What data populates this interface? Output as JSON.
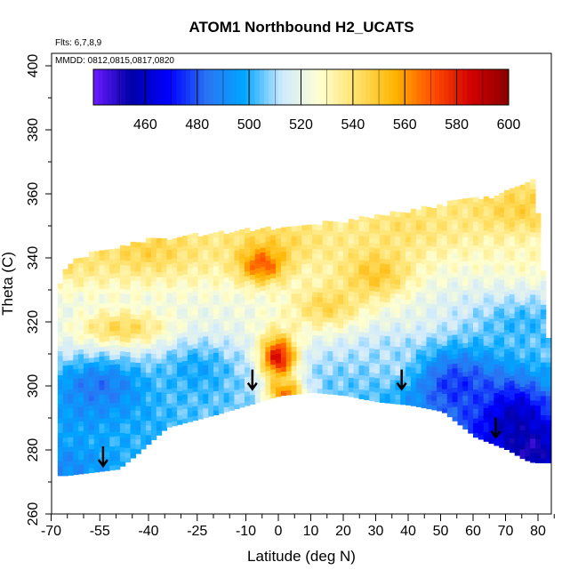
{
  "chart_data": {
    "type": "heatmap",
    "title": "ATOM1 Northbound H2_UCATS",
    "xlabel": "Latitude (deg N)",
    "ylabel": "Theta (C)",
    "notes": [
      "Flts: 6,7,8,9",
      "MMDD: 0812,0815,0817,0820"
    ],
    "xlim": [
      -70,
      85
    ],
    "ylim": [
      260,
      405
    ],
    "x_ticks": [
      -70,
      -55,
      -40,
      -25,
      -10,
      0,
      10,
      20,
      30,
      40,
      50,
      60,
      70,
      80
    ],
    "x_minor_ticks": [
      -65,
      -60,
      -50,
      -45,
      -35,
      -30,
      -20,
      -15,
      -5,
      5,
      15,
      25,
      35,
      45,
      55,
      65,
      75,
      85
    ],
    "y_ticks": [
      260,
      280,
      300,
      320,
      340,
      360,
      380,
      400
    ],
    "colorbar": {
      "range": [
        440,
        600
      ],
      "ticks": [
        460,
        480,
        500,
        520,
        540,
        560,
        580,
        600
      ],
      "colors": [
        "#6a1cff",
        "#0000a8",
        "#0000ff",
        "#2a74f2",
        "#00a6ff",
        "#cfeaff",
        "#ffffd0",
        "#ffe066",
        "#ffb400",
        "#ff4d00",
        "#d20000",
        "#8a0000"
      ]
    },
    "arrows": [
      {
        "lat": -54,
        "theta": 275
      },
      {
        "lat": -8,
        "theta": 299
      },
      {
        "lat": 38,
        "theta": 299
      },
      {
        "lat": 67,
        "theta": 284
      }
    ],
    "outline": {
      "upper": [
        [
          -68,
          332
        ],
        [
          -65,
          338
        ],
        [
          -55,
          342
        ],
        [
          -40,
          345
        ],
        [
          -20,
          347
        ],
        [
          0,
          349
        ],
        [
          20,
          351
        ],
        [
          40,
          354
        ],
        [
          55,
          357
        ],
        [
          68,
          359
        ],
        [
          78,
          364
        ],
        [
          80,
          345
        ],
        [
          82,
          320
        ],
        [
          83,
          305
        ],
        [
          84,
          296
        ],
        [
          84,
          277
        ]
      ],
      "lower": [
        [
          -66,
          272
        ],
        [
          -50,
          274
        ],
        [
          -45,
          278
        ],
        [
          -35,
          287
        ],
        [
          -20,
          291
        ],
        [
          -10,
          294
        ],
        [
          0,
          297
        ],
        [
          10,
          298
        ],
        [
          20,
          297
        ],
        [
          30,
          295
        ],
        [
          40,
          294
        ],
        [
          50,
          292
        ],
        [
          60,
          284
        ],
        [
          70,
          280
        ],
        [
          75,
          277
        ],
        [
          78,
          276
        ],
        [
          84,
          276
        ]
      ]
    },
    "field": {
      "base": [
        {
          "lat": -70,
          "theta": 275,
          "value": 488
        },
        {
          "lat": -60,
          "theta": 290,
          "value": 495
        },
        {
          "lat": -40,
          "theta": 288,
          "value": 500
        },
        {
          "lat": -20,
          "theta": 295,
          "value": 505
        },
        {
          "lat": 0,
          "theta": 300,
          "value": 512
        },
        {
          "lat": 20,
          "theta": 300,
          "value": 505
        },
        {
          "lat": 40,
          "theta": 298,
          "value": 500
        },
        {
          "lat": 60,
          "theta": 285,
          "value": 480
        },
        {
          "lat": 75,
          "theta": 282,
          "value": 460
        },
        {
          "lat": -70,
          "theta": 320,
          "value": 518
        },
        {
          "lat": -40,
          "theta": 320,
          "value": 520
        },
        {
          "lat": 0,
          "theta": 320,
          "value": 525
        },
        {
          "lat": 40,
          "theta": 320,
          "value": 520
        },
        {
          "lat": 75,
          "theta": 320,
          "value": 500
        },
        {
          "lat": -70,
          "theta": 340,
          "value": 545
        },
        {
          "lat": -40,
          "theta": 342,
          "value": 548
        },
        {
          "lat": 0,
          "theta": 345,
          "value": 545
        },
        {
          "lat": 40,
          "theta": 350,
          "value": 542
        },
        {
          "lat": 75,
          "theta": 355,
          "value": 548
        },
        {
          "lat": 80,
          "theta": 340,
          "value": 530
        }
      ],
      "features": [
        {
          "lat": 0,
          "theta": 309,
          "value": 585,
          "sigma_lat": 4,
          "sigma_theta": 5
        },
        {
          "lat": 2,
          "theta": 298,
          "value": 565,
          "sigma_lat": 4,
          "sigma_theta": 3
        },
        {
          "lat": -5,
          "theta": 338,
          "value": 570,
          "sigma_lat": 5,
          "sigma_theta": 4
        },
        {
          "lat": 15,
          "theta": 325,
          "value": 545,
          "sigma_lat": 8,
          "sigma_theta": 5
        },
        {
          "lat": -48,
          "theta": 318,
          "value": 545,
          "sigma_lat": 10,
          "sigma_theta": 4
        },
        {
          "lat": -55,
          "theta": 300,
          "value": 485,
          "sigma_lat": 10,
          "sigma_theta": 6
        },
        {
          "lat": 72,
          "theta": 290,
          "value": 455,
          "sigma_lat": 8,
          "sigma_theta": 8
        },
        {
          "lat": 78,
          "theta": 280,
          "value": 450,
          "sigma_lat": 4,
          "sigma_theta": 4
        },
        {
          "lat": 55,
          "theta": 300,
          "value": 475,
          "sigma_lat": 10,
          "sigma_theta": 8
        },
        {
          "lat": 30,
          "theta": 335,
          "value": 550,
          "sigma_lat": 8,
          "sigma_theta": 6
        },
        {
          "lat": 35,
          "theta": 308,
          "value": 510,
          "sigma_lat": 6,
          "sigma_theta": 6
        },
        {
          "lat": -25,
          "theta": 305,
          "value": 498,
          "sigma_lat": 8,
          "sigma_theta": 6
        }
      ]
    }
  }
}
